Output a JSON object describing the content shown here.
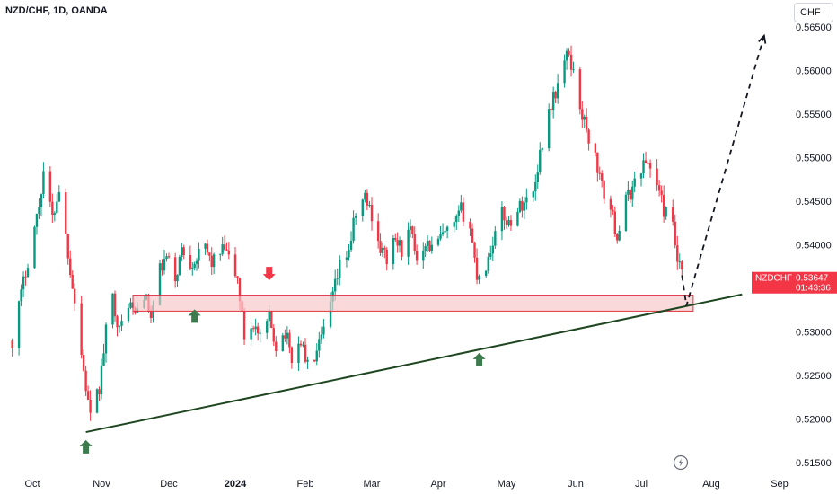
{
  "header": {
    "symbol_title": "NZD/CHF, 1D, OANDA",
    "currency_button": "CHF"
  },
  "price_tag": {
    "symbol": "NZDCHF",
    "price": "0.53647",
    "countdown": "01:43:36",
    "color": "#f23645"
  },
  "colors": {
    "up": "#089981",
    "down": "#f23645",
    "trendline": "#1e4620",
    "zone_fill": "#f7c5c8",
    "zone_stroke": "#e0333f",
    "arrow_up": "#3d7a4e",
    "arrow_down": "#f23645"
  },
  "icons": {
    "replay": "lightning-circle-icon"
  },
  "chart_data": {
    "type": "candlestick",
    "title": "NZD/CHF, 1D, OANDA",
    "y_axis": {
      "range": [
        0.5145,
        0.5655
      ],
      "ticks": [
        "0.56500",
        "0.56000",
        "0.55500",
        "0.55000",
        "0.54500",
        "0.54000",
        "0.53500",
        "0.53000",
        "0.52500",
        "0.52000",
        "0.51500"
      ]
    },
    "x_axis": {
      "ticks": [
        {
          "label": "Oct",
          "date": "2023-10-01",
          "bold": false
        },
        {
          "label": "Nov",
          "date": "2023-11-01",
          "bold": false
        },
        {
          "label": "Dec",
          "date": "2023-12-01",
          "bold": false
        },
        {
          "label": "2024",
          "date": "2024-01-01",
          "bold": true
        },
        {
          "label": "Feb",
          "date": "2024-02-01",
          "bold": false
        },
        {
          "label": "Mar",
          "date": "2024-03-01",
          "bold": false
        },
        {
          "label": "Apr",
          "date": "2024-04-01",
          "bold": false
        },
        {
          "label": "May",
          "date": "2024-05-01",
          "bold": false
        },
        {
          "label": "Jun",
          "date": "2024-06-01",
          "bold": false
        },
        {
          "label": "Jul",
          "date": "2024-07-01",
          "bold": false
        },
        {
          "label": "Aug",
          "date": "2024-08-01",
          "bold": false
        },
        {
          "label": "Sep",
          "date": "2024-09-01",
          "bold": false
        }
      ]
    },
    "price_path": [
      [
        "2023-09-22",
        0.529
      ],
      [
        "2023-09-28",
        0.537
      ],
      [
        "2023-10-04",
        0.5445
      ],
      [
        "2023-10-06",
        0.5485
      ],
      [
        "2023-10-10",
        0.543
      ],
      [
        "2023-10-13",
        0.5465
      ],
      [
        "2023-10-16",
        0.541
      ],
      [
        "2023-10-20",
        0.5335
      ],
      [
        "2023-10-24",
        0.5255
      ],
      [
        "2023-10-27",
        0.52
      ],
      [
        "2023-10-31",
        0.5235
      ],
      [
        "2023-11-03",
        0.53
      ],
      [
        "2023-11-06",
        0.534
      ],
      [
        "2023-11-09",
        0.53
      ],
      [
        "2023-11-13",
        0.5335
      ],
      [
        "2023-11-16",
        0.532
      ],
      [
        "2023-11-20",
        0.5345
      ],
      [
        "2023-11-23",
        0.5315
      ],
      [
        "2023-11-27",
        0.537
      ],
      [
        "2023-11-30",
        0.5385
      ],
      [
        "2023-12-04",
        0.536
      ],
      [
        "2023-12-07",
        0.5395
      ],
      [
        "2023-12-11",
        0.538
      ],
      [
        "2023-12-14",
        0.5385
      ],
      [
        "2023-12-18",
        0.5395
      ],
      [
        "2023-12-21",
        0.538
      ],
      [
        "2023-12-27",
        0.5395
      ],
      [
        "2024-01-02",
        0.536
      ],
      [
        "2024-01-05",
        0.5295
      ],
      [
        "2024-01-09",
        0.531
      ],
      [
        "2024-01-12",
        0.529
      ],
      [
        "2024-01-16",
        0.5315
      ],
      [
        "2024-01-19",
        0.5285
      ],
      [
        "2024-01-23",
        0.53
      ],
      [
        "2024-01-26",
        0.527
      ],
      [
        "2024-01-30",
        0.529
      ],
      [
        "2024-02-02",
        0.526
      ],
      [
        "2024-02-06",
        0.5275
      ],
      [
        "2024-02-09",
        0.53
      ],
      [
        "2024-02-13",
        0.534
      ],
      [
        "2024-02-16",
        0.5375
      ],
      [
        "2024-02-20",
        0.5395
      ],
      [
        "2024-02-23",
        0.5435
      ],
      [
        "2024-02-27",
        0.5455
      ],
      [
        "2024-03-01",
        0.5435
      ],
      [
        "2024-03-05",
        0.5395
      ],
      [
        "2024-03-08",
        0.5385
      ],
      [
        "2024-03-12",
        0.5405
      ],
      [
        "2024-03-15",
        0.5395
      ],
      [
        "2024-03-19",
        0.5415
      ],
      [
        "2024-03-22",
        0.5385
      ],
      [
        "2024-03-26",
        0.5405
      ],
      [
        "2024-03-29",
        0.5395
      ],
      [
        "2024-04-03",
        0.541
      ],
      [
        "2024-04-08",
        0.542
      ],
      [
        "2024-04-11",
        0.544
      ],
      [
        "2024-04-15",
        0.542
      ],
      [
        "2024-04-18",
        0.5365
      ],
      [
        "2024-04-22",
        0.5375
      ],
      [
        "2024-04-25",
        0.5405
      ],
      [
        "2024-04-29",
        0.5435
      ],
      [
        "2024-05-02",
        0.5425
      ],
      [
        "2024-05-06",
        0.544
      ],
      [
        "2024-05-09",
        0.545
      ],
      [
        "2024-05-13",
        0.546
      ],
      [
        "2024-05-16",
        0.5505
      ],
      [
        "2024-05-20",
        0.5555
      ],
      [
        "2024-05-23",
        0.5575
      ],
      [
        "2024-05-27",
        0.561
      ],
      [
        "2024-05-29",
        0.562
      ],
      [
        "2024-06-03",
        0.556
      ],
      [
        "2024-06-06",
        0.553
      ],
      [
        "2024-06-10",
        0.55
      ],
      [
        "2024-06-13",
        0.5465
      ],
      [
        "2024-06-17",
        0.544
      ],
      [
        "2024-06-20",
        0.541
      ],
      [
        "2024-06-24",
        0.545
      ],
      [
        "2024-06-27",
        0.5465
      ],
      [
        "2024-07-01",
        0.549
      ],
      [
        "2024-07-04",
        0.5495
      ],
      [
        "2024-07-08",
        0.547
      ],
      [
        "2024-07-11",
        0.544
      ],
      [
        "2024-07-15",
        0.542
      ],
      [
        "2024-07-17",
        0.538
      ],
      [
        "2024-07-19",
        0.5365
      ]
    ],
    "annotations": {
      "support_zone": {
        "start": "2023-11-15",
        "end": "2024-07-24",
        "low": 0.533,
        "high": 0.5336
      },
      "trendline": {
        "points": [
          [
            "2023-10-25",
            0.5185
          ],
          [
            "2024-08-15",
            0.5343
          ]
        ]
      },
      "projection": {
        "points": [
          [
            "2024-07-19",
            0.5365
          ],
          [
            "2024-07-21",
            0.533
          ],
          [
            "2024-08-25",
            0.564
          ]
        ]
      },
      "arrows": [
        {
          "direction": "up",
          "date": "2023-10-25",
          "price": 0.518
        },
        {
          "direction": "up",
          "date": "2023-12-13",
          "price": 0.533
        },
        {
          "direction": "down",
          "date": "2024-01-16",
          "price": 0.5355
        },
        {
          "direction": "up",
          "date": "2024-04-19",
          "price": 0.528
        }
      ]
    }
  }
}
